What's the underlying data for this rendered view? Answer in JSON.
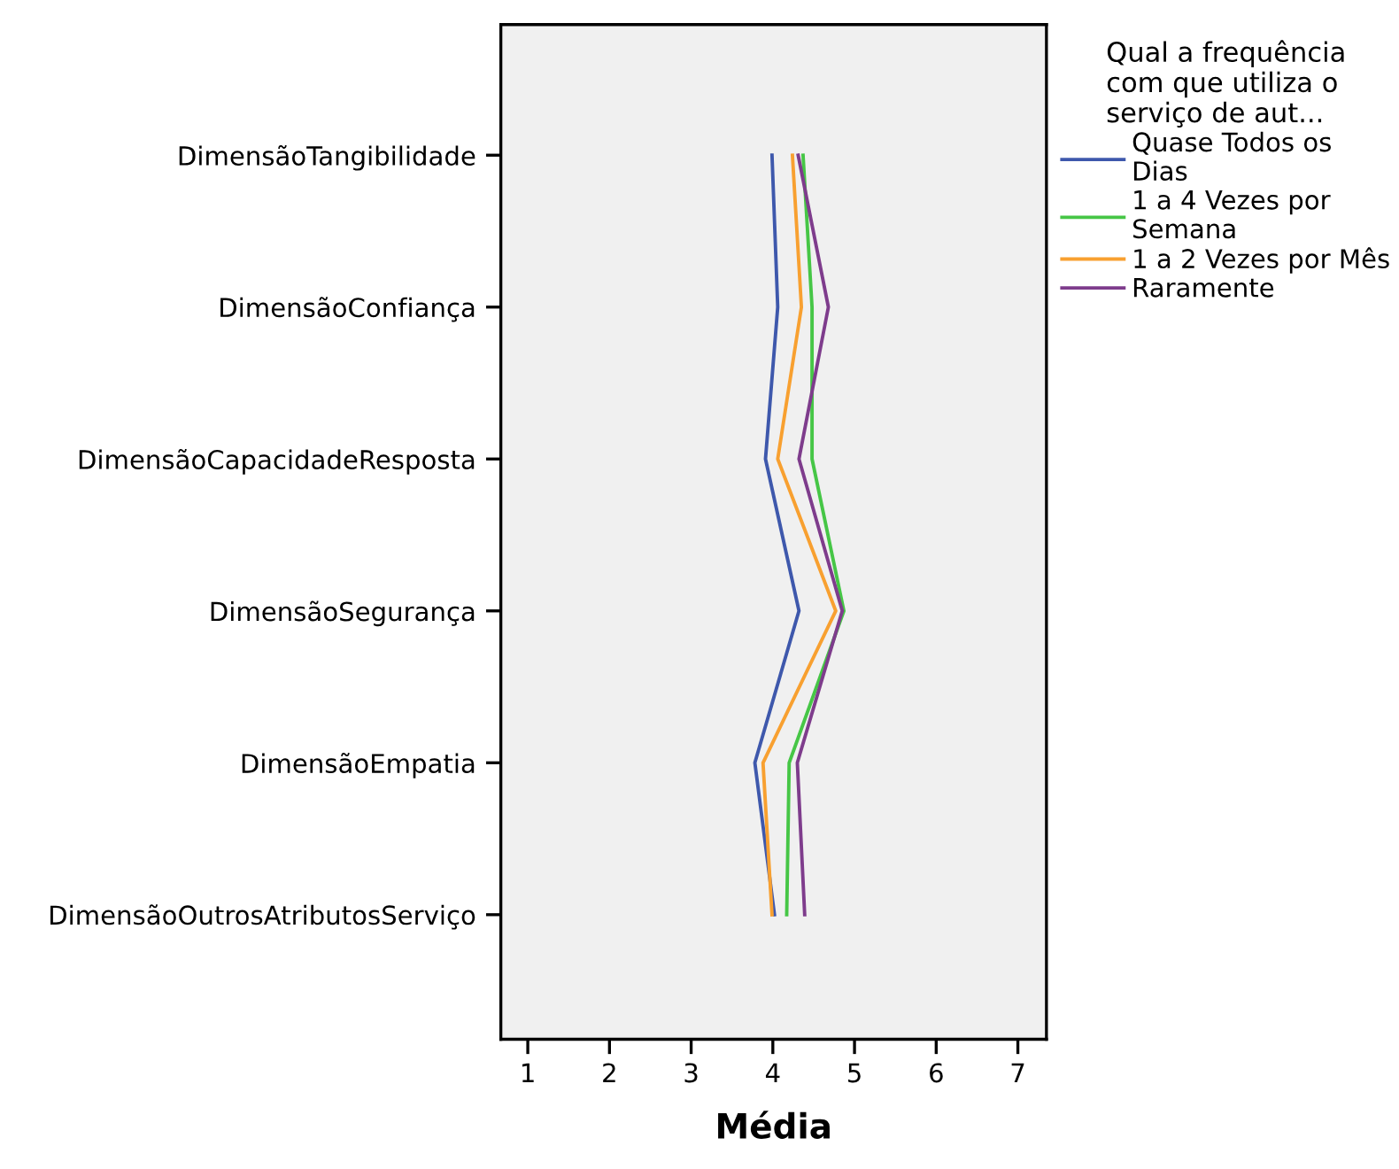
{
  "chart_data": {
    "type": "line",
    "orientation": "horizontal",
    "xlabel": "Média",
    "categories": [
      "DimensãoTangibilidade",
      "DimensãoConfiança",
      "DimensãoCapacidadeResposta",
      "DimensãoSegurança",
      "DimensãoEmpatia",
      "DimensãoOutrosAtributosServiço"
    ],
    "series": [
      {
        "name": "Quase Todos os\nDias",
        "color": "#3e58ac",
        "values": [
          3.99,
          4.06,
          3.91,
          4.32,
          3.78,
          4.02
        ]
      },
      {
        "name": "1 a 4 Vezes por\nSemana",
        "color": "#46c646",
        "values": [
          4.37,
          4.48,
          4.48,
          4.87,
          4.2,
          4.17
        ]
      },
      {
        "name": "1 a 2 Vezes por Mês",
        "color": "#f8a030",
        "values": [
          4.24,
          4.35,
          4.06,
          4.77,
          3.88,
          3.99
        ]
      },
      {
        "name": "Raramente",
        "color": "#7e3c8c",
        "values": [
          4.31,
          4.68,
          4.32,
          4.85,
          4.3,
          4.39
        ]
      }
    ],
    "xlim": [
      0.67,
      7.35
    ],
    "xticks": [
      1,
      2,
      3,
      4,
      5,
      6,
      7
    ],
    "legend": "right",
    "legend_title": "Qual a frequência\ncom que utiliza o\nserviço de aut...",
    "grid": false,
    "marker": "none",
    "line_style": "solid"
  }
}
